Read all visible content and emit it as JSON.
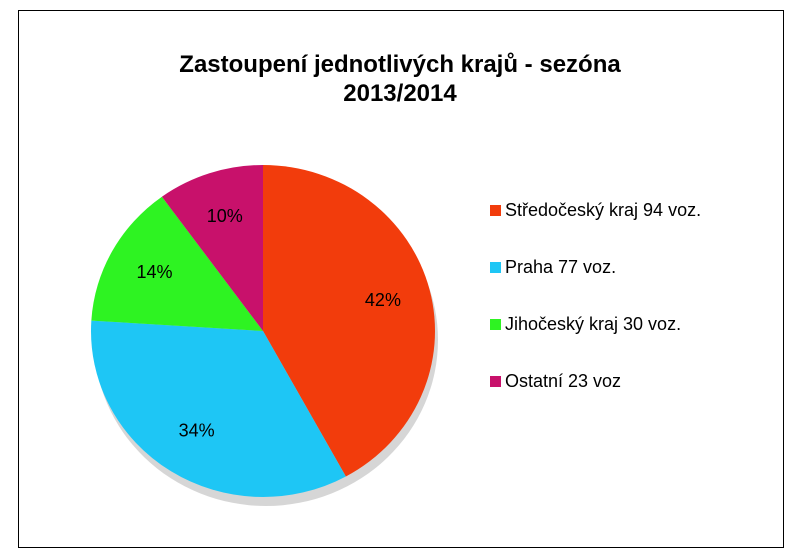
{
  "chart_data": {
    "type": "pie",
    "title": "Zastoupení jednotlivých krajů - sezóna 2013/2014",
    "categories": [
      "Středočeský kraj 94 voz.",
      "Praha 77 voz.",
      "Jihočeský kraj 30 voz.",
      "Ostatní 23 voz"
    ],
    "values": [
      42,
      34,
      14,
      10
    ],
    "value_labels": [
      "42%",
      "34%",
      "14%",
      "10%"
    ],
    "colors": [
      "#f23c0c",
      "#1ec6f5",
      "#2ef322",
      "#c8116b"
    ],
    "legend": "right"
  }
}
